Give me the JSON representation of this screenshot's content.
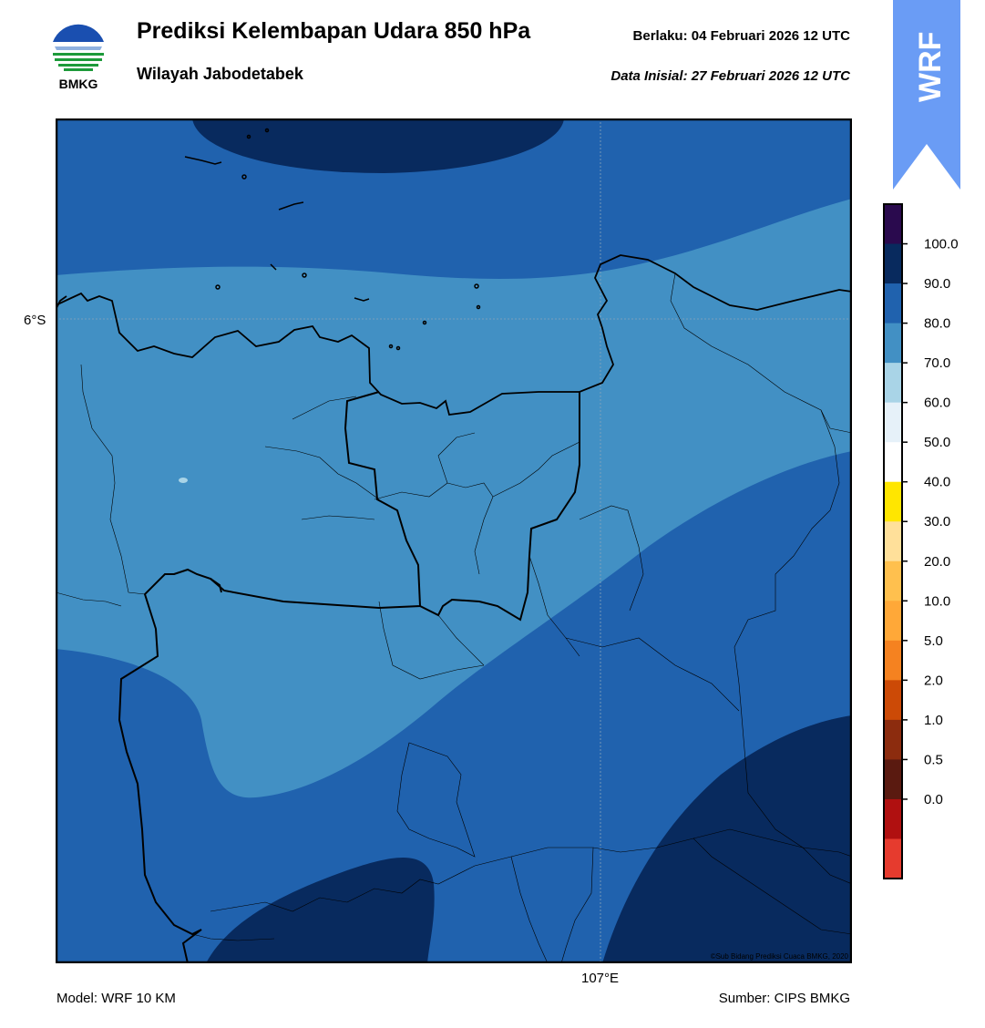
{
  "header": {
    "title": "Prediksi Kelembapan Udara 850 hPa",
    "region": "Wilayah Jabodetabek",
    "valid": "Berlaku:  04 Februari 2026 12 UTC",
    "initial": "Data Inisial:  27 Februari 2026 12 UTC",
    "logo_text": "BMKG",
    "ribbon_text": "WRF"
  },
  "axes": {
    "lat_label": "6°S",
    "lon_label": "107°E"
  },
  "footer": {
    "model": "Model: WRF 10 KM",
    "source": "Sumber: CIPS BMKG",
    "copyright": "©Sub Bidang Prediksi Cuaca BMKG, 2020"
  },
  "colorbar": {
    "ticks": [
      "100.0",
      "90.0",
      "80.0",
      "70.0",
      "60.0",
      "50.0",
      "40.0",
      "30.0",
      "20.0",
      "10.0",
      "5.0",
      "2.0",
      "1.0",
      "0.5",
      "0.0"
    ],
    "colors_top_to_bottom": [
      "#2a0a4e",
      "#082a5e",
      "#2062ae",
      "#4290c4",
      "#a9d4e7",
      "#e6f1f9",
      "#ffffff",
      "#ffe600",
      "#ffe09a",
      "#ffc04e",
      "#ffa838",
      "#f58220",
      "#cc4a06",
      "#8c2c0e",
      "#5a1a10",
      "#b01010",
      "#e63b2e"
    ]
  },
  "legend_colors": {
    "dark": "#082a5e",
    "mid": "#2062ae",
    "light": "#4290c4"
  }
}
